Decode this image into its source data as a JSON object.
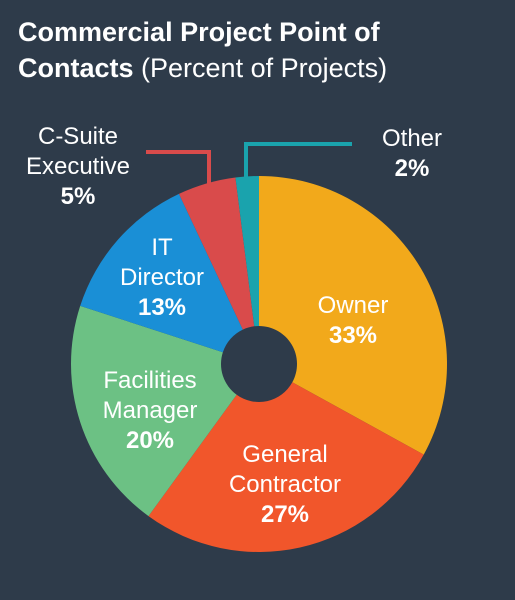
{
  "title_bold_1": "Commercial Project Point of",
  "title_bold_2": "Contacts",
  "title_light": "(Percent of Projects)",
  "chart_data": {
    "type": "pie",
    "title": "Commercial Project Point of Contacts (Percent of Projects)",
    "slices": [
      {
        "lines": [
          "Owner"
        ],
        "pct_label": "33%",
        "value": 33,
        "color": "#f2a91b"
      },
      {
        "lines": [
          "General",
          "Contractor"
        ],
        "pct_label": "27%",
        "value": 27,
        "color": "#f1562b"
      },
      {
        "lines": [
          "Facilities",
          "Manager"
        ],
        "pct_label": "20%",
        "value": 20,
        "color": "#6cc184"
      },
      {
        "lines": [
          "IT",
          "Director"
        ],
        "pct_label": "13%",
        "value": 13,
        "color": "#1a8fd6"
      },
      {
        "lines": [
          "C-Suite",
          "Executive"
        ],
        "pct_label": "5%",
        "value": 5,
        "color": "#d94b4b"
      },
      {
        "lines": [
          "Other"
        ],
        "pct_label": "2%",
        "value": 2,
        "color": "#1aa3ad"
      }
    ],
    "donut": true
  }
}
